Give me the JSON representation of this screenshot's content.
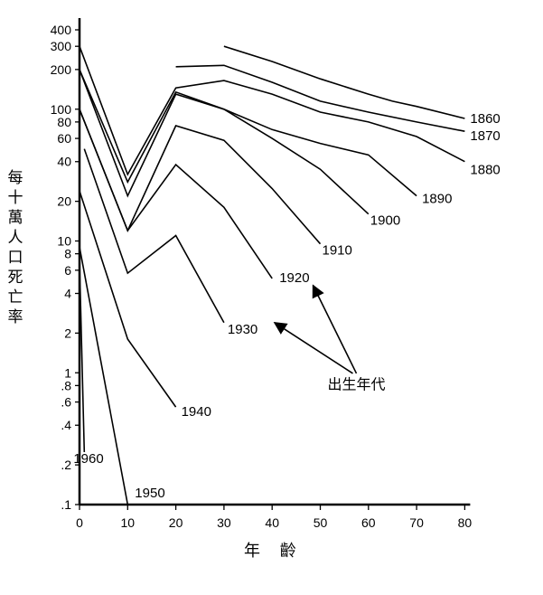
{
  "chart_data": {
    "type": "line",
    "xlabel": "年 齡",
    "ylabel": "每十萬人口死亡率",
    "y_scale": "log",
    "xlim": [
      0,
      80
    ],
    "ylim": [
      0.1,
      400
    ],
    "x_ticks": [
      0,
      10,
      20,
      30,
      40,
      50,
      60,
      70,
      80
    ],
    "y_ticks": [
      {
        "v": 400,
        "label": "400"
      },
      {
        "v": 300,
        "label": "300"
      },
      {
        "v": 200,
        "label": "200"
      },
      {
        "v": 100,
        "label": "100"
      },
      {
        "v": 80,
        "label": "80"
      },
      {
        "v": 60,
        "label": "60"
      },
      {
        "v": 40,
        "label": "40"
      },
      {
        "v": 20,
        "label": "20"
      },
      {
        "v": 10,
        "label": "10"
      },
      {
        "v": 8,
        "label": "8"
      },
      {
        "v": 6,
        "label": "6"
      },
      {
        "v": 4,
        "label": "4"
      },
      {
        "v": 2,
        "label": "2"
      },
      {
        "v": 1,
        "label": "1"
      },
      {
        "v": 0.8,
        "label": ".8"
      },
      {
        "v": 0.6,
        "label": ".6"
      },
      {
        "v": 0.4,
        "label": ".4"
      },
      {
        "v": 0.2,
        "label": ".2"
      },
      {
        "v": 0.1,
        "label": ".1"
      }
    ],
    "series": [
      {
        "name": "1860",
        "x": [
          30,
          40,
          50,
          60,
          65,
          70,
          80
        ],
        "y": [
          300,
          230,
          170,
          130,
          115,
          105,
          85
        ]
      },
      {
        "name": "1870",
        "x": [
          20,
          30,
          40,
          50,
          60,
          70,
          80
        ],
        "y": [
          210,
          215,
          160,
          115,
          95,
          80,
          68
        ]
      },
      {
        "name": "1880",
        "x": [
          0,
          10,
          20,
          30,
          40,
          50,
          60,
          70,
          80
        ],
        "y": [
          300,
          32,
          145,
          165,
          130,
          95,
          80,
          62,
          40
        ]
      },
      {
        "name": "1890",
        "x": [
          0,
          10,
          20,
          30,
          40,
          50,
          60,
          70
        ],
        "y": [
          200,
          28,
          135,
          100,
          70,
          55,
          45,
          22
        ]
      },
      {
        "name": "1900",
        "x": [
          0,
          10,
          20,
          30,
          40,
          50,
          60
        ],
        "y": [
          200,
          22,
          130,
          100,
          60,
          35,
          16
        ]
      },
      {
        "name": "1910",
        "x": [
          0,
          10,
          20,
          30,
          40,
          50
        ],
        "y": [
          100,
          12,
          75,
          58,
          25,
          9.5
        ]
      },
      {
        "name": "1920",
        "x": [
          0,
          10,
          20,
          30,
          40
        ],
        "y": [
          100,
          12,
          38,
          18,
          5.2
        ]
      },
      {
        "name": "1930",
        "x": [
          1,
          10,
          20,
          30
        ],
        "y": [
          50,
          5.7,
          11,
          2.4
        ]
      },
      {
        "name": "1940",
        "x": [
          0,
          10,
          20
        ],
        "y": [
          24,
          1.8,
          0.55
        ]
      },
      {
        "name": "1950",
        "x": [
          0,
          10
        ],
        "y": [
          9,
          0.1
        ]
      },
      {
        "name": "1960",
        "x": [
          0,
          1
        ],
        "y": [
          7,
          0.25
        ]
      }
    ],
    "annotation": {
      "text": "出生年代"
    }
  }
}
